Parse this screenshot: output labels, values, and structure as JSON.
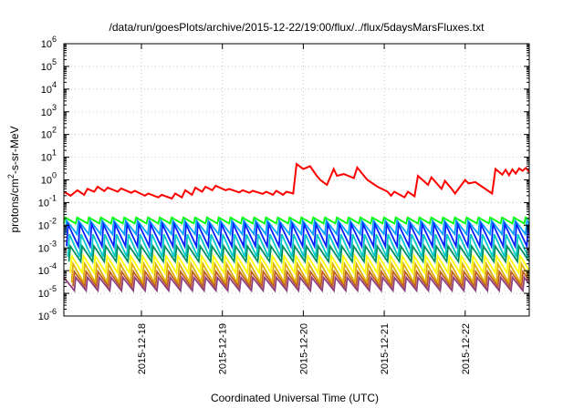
{
  "chart_data": {
    "type": "line",
    "title": "/data/run/goesPlots/archive/2015-12-22/19:00/flux/../flux/5daysMarsFluxes.txt",
    "xlabel": "Coordinated Universal Time (UTC)",
    "ylabel": "protons/cm2-s-sr-MeV",
    "ylabel_parts": {
      "pre": "protons/cm",
      "sup": "2",
      "post": "-s-sr-MeV"
    },
    "y_scale": "log",
    "ylim": [
      1e-06,
      1000000
    ],
    "y_ticks": [
      {
        "value": 1e-06,
        "base": "10",
        "exp": "-6"
      },
      {
        "value": 1e-05,
        "base": "10",
        "exp": "-5"
      },
      {
        "value": 0.0001,
        "base": "10",
        "exp": "-4"
      },
      {
        "value": 0.001,
        "base": "10",
        "exp": "-3"
      },
      {
        "value": 0.01,
        "base": "10",
        "exp": "-2"
      },
      {
        "value": 0.1,
        "base": "10",
        "exp": "-1"
      },
      {
        "value": 1,
        "base": "10",
        "exp": "0"
      },
      {
        "value": 10,
        "base": "10",
        "exp": "1"
      },
      {
        "value": 100,
        "base": "10",
        "exp": "2"
      },
      {
        "value": 1000,
        "base": "10",
        "exp": "3"
      },
      {
        "value": 10000,
        "base": "10",
        "exp": "4"
      },
      {
        "value": 100000,
        "base": "10",
        "exp": "5"
      },
      {
        "value": 1000000,
        "base": "10",
        "exp": "6"
      }
    ],
    "x_scale": "time",
    "xlim": [
      "2015-12-17T01:00:00",
      "2015-12-22T19:00:00"
    ],
    "x_ticks": [
      {
        "value": "2015-12-18T00:00:00",
        "label": "2015-12-18"
      },
      {
        "value": "2015-12-19T00:00:00",
        "label": "2015-12-19"
      },
      {
        "value": "2015-12-20T00:00:00",
        "label": "2015-12-20"
      },
      {
        "value": "2015-12-21T00:00:00",
        "label": "2015-12-21"
      },
      {
        "value": "2015-12-22T00:00:00",
        "label": "2015-12-22"
      }
    ],
    "grid": true,
    "series": [
      {
        "color": "#ff0000",
        "x": [
          "2015-12-17T01:00:00",
          "2015-12-17T03:00:00",
          "2015-12-17T05:00:00",
          "2015-12-17T07:00:00",
          "2015-12-17T08:00:00",
          "2015-12-17T10:00:00",
          "2015-12-17T11:00:00",
          "2015-12-17T13:00:00",
          "2015-12-17T14:00:00",
          "2015-12-17T17:00:00",
          "2015-12-17T18:00:00",
          "2015-12-17T21:00:00",
          "2015-12-17T22:00:00",
          "2015-12-18T01:00:00",
          "2015-12-18T02:00:00",
          "2015-12-18T05:00:00",
          "2015-12-18T06:00:00",
          "2015-12-18T09:00:00",
          "2015-12-18T10:00:00",
          "2015-12-18T12:00:00",
          "2015-12-18T13:00:00",
          "2015-12-18T15:00:00",
          "2015-12-18T16:00:00",
          "2015-12-18T18:00:00",
          "2015-12-18T19:00:00",
          "2015-12-18T21:00:00",
          "2015-12-18T22:00:00",
          "2015-12-19T01:00:00",
          "2015-12-19T02:00:00",
          "2015-12-19T05:00:00",
          "2015-12-19T06:00:00",
          "2015-12-19T08:00:00",
          "2015-12-19T09:00:00",
          "2015-12-19T12:00:00",
          "2015-12-19T13:00:00",
          "2015-12-19T15:00:00",
          "2015-12-19T16:00:00",
          "2015-12-19T18:00:00",
          "2015-12-19T19:00:00",
          "2015-12-19T21:00:00",
          "2015-12-19T22:00:00",
          "2015-12-20T00:00:00",
          "2015-12-20T02:00:00",
          "2015-12-20T04:00:00",
          "2015-12-20T05:00:00",
          "2015-12-20T07:00:00",
          "2015-12-20T09:00:00",
          "2015-12-20T10:00:00",
          "2015-12-20T12:00:00",
          "2015-12-20T15:00:00",
          "2015-12-20T16:00:00",
          "2015-12-20T18:00:00",
          "2015-12-20T19:00:00",
          "2015-12-20T22:00:00",
          "2015-12-21T01:00:00",
          "2015-12-21T02:00:00",
          "2015-12-21T03:00:00",
          "2015-12-21T06:00:00",
          "2015-12-21T07:00:00",
          "2015-12-21T09:00:00",
          "2015-12-21T10:00:00",
          "2015-12-21T13:00:00",
          "2015-12-21T14:00:00",
          "2015-12-21T17:00:00",
          "2015-12-21T18:00:00",
          "2015-12-21T20:00:00",
          "2015-12-21T21:00:00",
          "2015-12-22T00:00:00",
          "2015-12-22T01:00:00",
          "2015-12-22T03:00:00",
          "2015-12-22T05:00:00",
          "2015-12-22T08:00:00",
          "2015-12-22T09:00:00",
          "2015-12-22T11:00:00",
          "2015-12-22T12:00:00",
          "2015-12-22T13:00:00",
          "2015-12-22T14:00:00",
          "2015-12-22T15:00:00",
          "2015-12-22T16:00:00",
          "2015-12-22T17:00:00",
          "2015-12-22T18:00:00",
          "2015-12-22T19:00:00"
        ],
        "y": [
          0.3,
          0.2,
          0.35,
          0.22,
          0.4,
          0.3,
          0.5,
          0.32,
          0.45,
          0.3,
          0.42,
          0.27,
          0.33,
          0.2,
          0.25,
          0.17,
          0.22,
          0.15,
          0.25,
          0.17,
          0.35,
          0.22,
          0.45,
          0.3,
          0.5,
          0.35,
          0.55,
          0.35,
          0.4,
          0.28,
          0.35,
          0.27,
          0.33,
          0.24,
          0.3,
          0.22,
          0.33,
          0.22,
          0.3,
          0.25,
          5.0,
          3.0,
          4.0,
          1.5,
          1.0,
          0.6,
          3.0,
          1.5,
          1.8,
          1.2,
          3.5,
          1.5,
          1.0,
          0.5,
          0.3,
          0.2,
          0.3,
          0.17,
          0.3,
          0.19,
          1.5,
          0.6,
          1.3,
          0.4,
          0.9,
          0.4,
          0.25,
          1.0,
          0.7,
          0.8,
          0.5,
          0.25,
          3.0,
          1.7,
          2.8,
          1.6,
          2.9,
          1.9,
          3.2,
          2.5,
          3.4,
          2.2
        ]
      }
    ],
    "periodic_series": [
      {
        "color": "#00ff00",
        "low": 0.012,
        "high": 0.022,
        "period_h": 3.5,
        "phase_h": 0.0
      },
      {
        "color": "#00a0ff",
        "low": 0.004,
        "high": 0.016,
        "period_h": 3.5,
        "phase_h": 0.4
      },
      {
        "color": "#0020ff",
        "low": 0.0012,
        "high": 0.011,
        "period_h": 3.5,
        "phase_h": 0.8
      },
      {
        "color": "#00c8c8",
        "low": 0.0004,
        "high": 0.004,
        "period_h": 3.5,
        "phase_h": 1.2
      },
      {
        "color": "#009060",
        "low": 0.00025,
        "high": 0.0012,
        "period_h": 3.5,
        "phase_h": 1.5
      },
      {
        "color": "#ffff00",
        "low": 8e-05,
        "high": 0.00045,
        "period_h": 3.5,
        "phase_h": 1.9
      },
      {
        "color": "#e0b000",
        "low": 3e-05,
        "high": 0.0002,
        "period_h": 3.5,
        "phase_h": 2.3
      },
      {
        "color": "#c06020",
        "low": 2e-05,
        "high": 9e-05,
        "period_h": 3.5,
        "phase_h": 2.7
      },
      {
        "color": "#904080",
        "low": 1.3e-05,
        "high": 5e-05,
        "period_h": 3.5,
        "phase_h": 3.1
      }
    ]
  }
}
